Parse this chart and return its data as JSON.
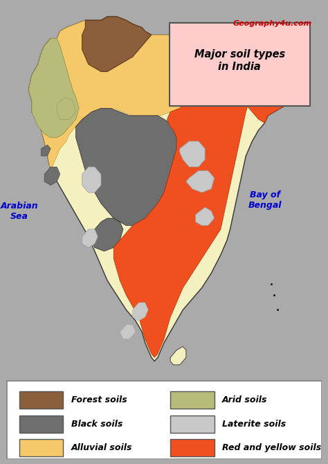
{
  "title": "Major soil types\nin India",
  "website": "Geography4u.com",
  "bg_color": "#f5f0c0",
  "ocean_color": "#55ccdd",
  "legend_items": [
    {
      "label": "Forest soils",
      "color": "#8B5E3C"
    },
    {
      "label": "Black soils",
      "color": "#6e6e6e"
    },
    {
      "label": "Alluvial soils",
      "color": "#f5c96a"
    },
    {
      "label": "Arid soils",
      "color": "#b8bc7a"
    },
    {
      "label": "Laterite soils",
      "color": "#c8c8c8"
    },
    {
      "label": "Red and yellow soils",
      "color": "#f05020"
    }
  ],
  "text_arabian_sea": "Arabian\nSea",
  "text_bay_of_bengal": "Bay of\nBengal",
  "website_color": "#cc0000",
  "title_bg": "#ffcccc",
  "title_border": "#555555",
  "outer_border": "#aaaaaa",
  "map_bg": "#f5f0c0",
  "figsize": [
    4.74,
    6.7
  ],
  "dpi": 100
}
